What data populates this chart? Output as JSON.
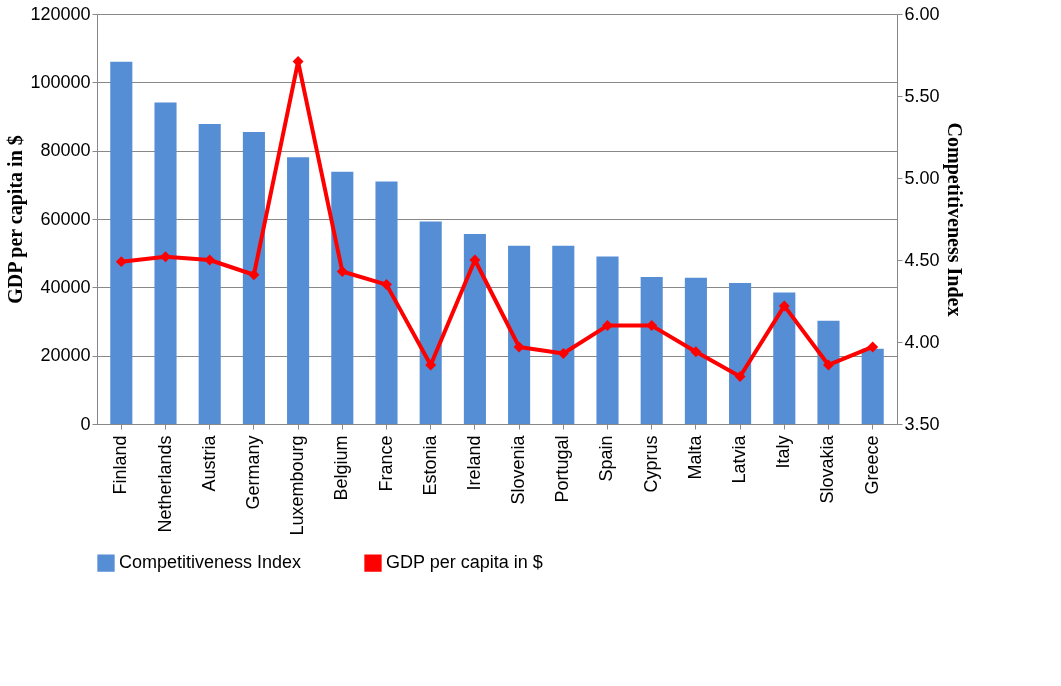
{
  "chart_data": {
    "type": "bar",
    "xlabel": null,
    "ylabel": "GDP per capita in $",
    "y2label": "Competitiveness Index",
    "categories": [
      "Finland",
      "Netherlands",
      "Austria",
      "Germany",
      "Luxembourg",
      "Belgium",
      "France",
      "Estonia",
      "Ireland",
      "Slovenia",
      "Portugal",
      "Spain",
      "Cyprus",
      "Malta",
      "Latvia",
      "Italy",
      "Slovakia",
      "Greece"
    ],
    "series": [
      {
        "name": "Competitiveness Index",
        "color": "#558ed5",
        "values": [
          106000,
          94100,
          87800,
          85500,
          78100,
          73800,
          71000,
          59300,
          55600,
          52200,
          52200,
          49000,
          43000,
          42800,
          41300,
          38500,
          30200,
          22000
        ]
      },
      {
        "name": "GDP per capita in $",
        "type": "line",
        "axis": "y2",
        "color": "#ff0000",
        "marker": "diamond",
        "values": [
          4.49,
          4.52,
          4.5,
          4.41,
          5.71,
          4.43,
          4.35,
          3.86,
          4.5,
          3.97,
          3.93,
          4.1,
          4.1,
          3.94,
          3.79,
          4.22,
          3.86,
          3.97
        ]
      }
    ],
    "ylim": [
      0,
      120000
    ],
    "yticks": [
      0,
      20000,
      40000,
      60000,
      80000,
      100000,
      120000
    ],
    "y2lim": [
      3.5,
      6.0
    ],
    "y2ticks": [
      {
        "value": 3.5,
        "label": "3.50"
      },
      {
        "value": 4.0,
        "label": "4.00"
      },
      {
        "value": 4.5,
        "label": "4.50"
      },
      {
        "value": 5.0,
        "label": "5.00"
      },
      {
        "value": 5.5,
        "label": "5.50"
      },
      {
        "value": 6.0,
        "label": "6.00"
      }
    ],
    "grid": "y",
    "legend": "bottom"
  }
}
